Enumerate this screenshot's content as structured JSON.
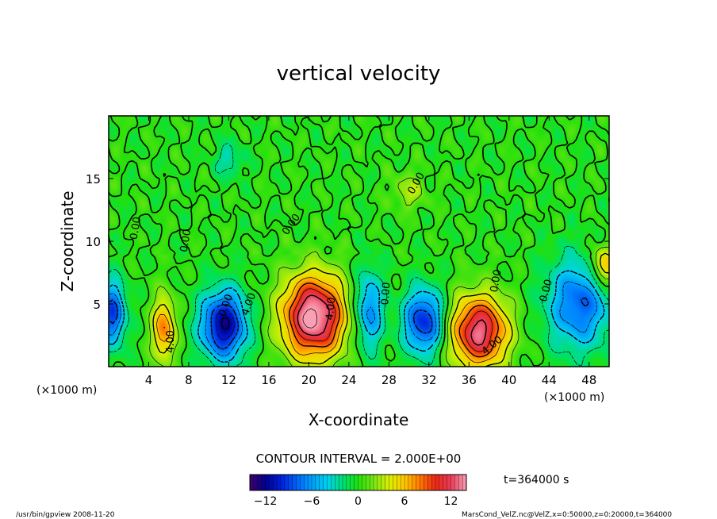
{
  "chart_data": {
    "type": "heatmap",
    "title": "vertical velocity",
    "xlabel": "X-coordinate",
    "ylabel": "Z-coordinate",
    "x_unit_label": "(×1000 m)",
    "x_unit_label_right": "(×1000 m)",
    "xlim": [
      0,
      50
    ],
    "ylim": [
      0,
      20
    ],
    "x_ticks": [
      4,
      8,
      12,
      16,
      20,
      24,
      28,
      32,
      36,
      40,
      44,
      48
    ],
    "y_ticks": [
      5,
      10,
      15
    ],
    "contour_interval_label": "CONTOUR INTERVAL = 2.000E+00",
    "contour_labels": [
      "0.00",
      "0.00",
      "0.00",
      "0.00",
      "0.00",
      "0.00",
      "0.00",
      "4.00",
      "4.00",
      "4.00",
      "4.00",
      "0.00"
    ],
    "colorbar": {
      "min": -14,
      "max": 14,
      "ticks": [
        -12,
        -6,
        0,
        6,
        12
      ]
    },
    "features": [
      {
        "x": 20.5,
        "z": 4.0,
        "sx": 2.2,
        "sz": 2.3,
        "amp": 15
      },
      {
        "x": 37.0,
        "z": 2.8,
        "sx": 2.0,
        "sz": 2.0,
        "amp": 13
      },
      {
        "x": 5.5,
        "z": 3.0,
        "sx": 0.8,
        "sz": 1.8,
        "amp": 8
      },
      {
        "x": 49.5,
        "z": 8.0,
        "sx": 1.0,
        "sz": 1.2,
        "amp": 7
      },
      {
        "x": 11.5,
        "z": 3.3,
        "sx": 1.6,
        "sz": 1.9,
        "amp": -12
      },
      {
        "x": 31.5,
        "z": 3.6,
        "sx": 1.4,
        "sz": 1.8,
        "amp": -10
      },
      {
        "x": 26.0,
        "z": 4.5,
        "sx": 1.0,
        "sz": 2.2,
        "amp": -7
      },
      {
        "x": 47.0,
        "z": 5.0,
        "sx": 2.2,
        "sz": 2.5,
        "amp": -8
      },
      {
        "x": 0.4,
        "z": 4.2,
        "sx": 0.9,
        "sz": 1.8,
        "amp": -9
      },
      {
        "x": 12.0,
        "z": 16.5,
        "sx": 1.0,
        "sz": 1.0,
        "amp": -3
      },
      {
        "x": 30.0,
        "z": 14.0,
        "sx": 1.2,
        "sz": 1.0,
        "amp": 3
      }
    ]
  },
  "info": {
    "time_label": "t=364000 s",
    "footer_left": "/usr/bin/gpview  2008-11-20",
    "footer_right": "MarsCond_VelZ.nc@VelZ,x=0:50000,z=0:20000,t=364000"
  },
  "colors": {
    "background_field": "#22e00c",
    "frame": "#000000"
  }
}
